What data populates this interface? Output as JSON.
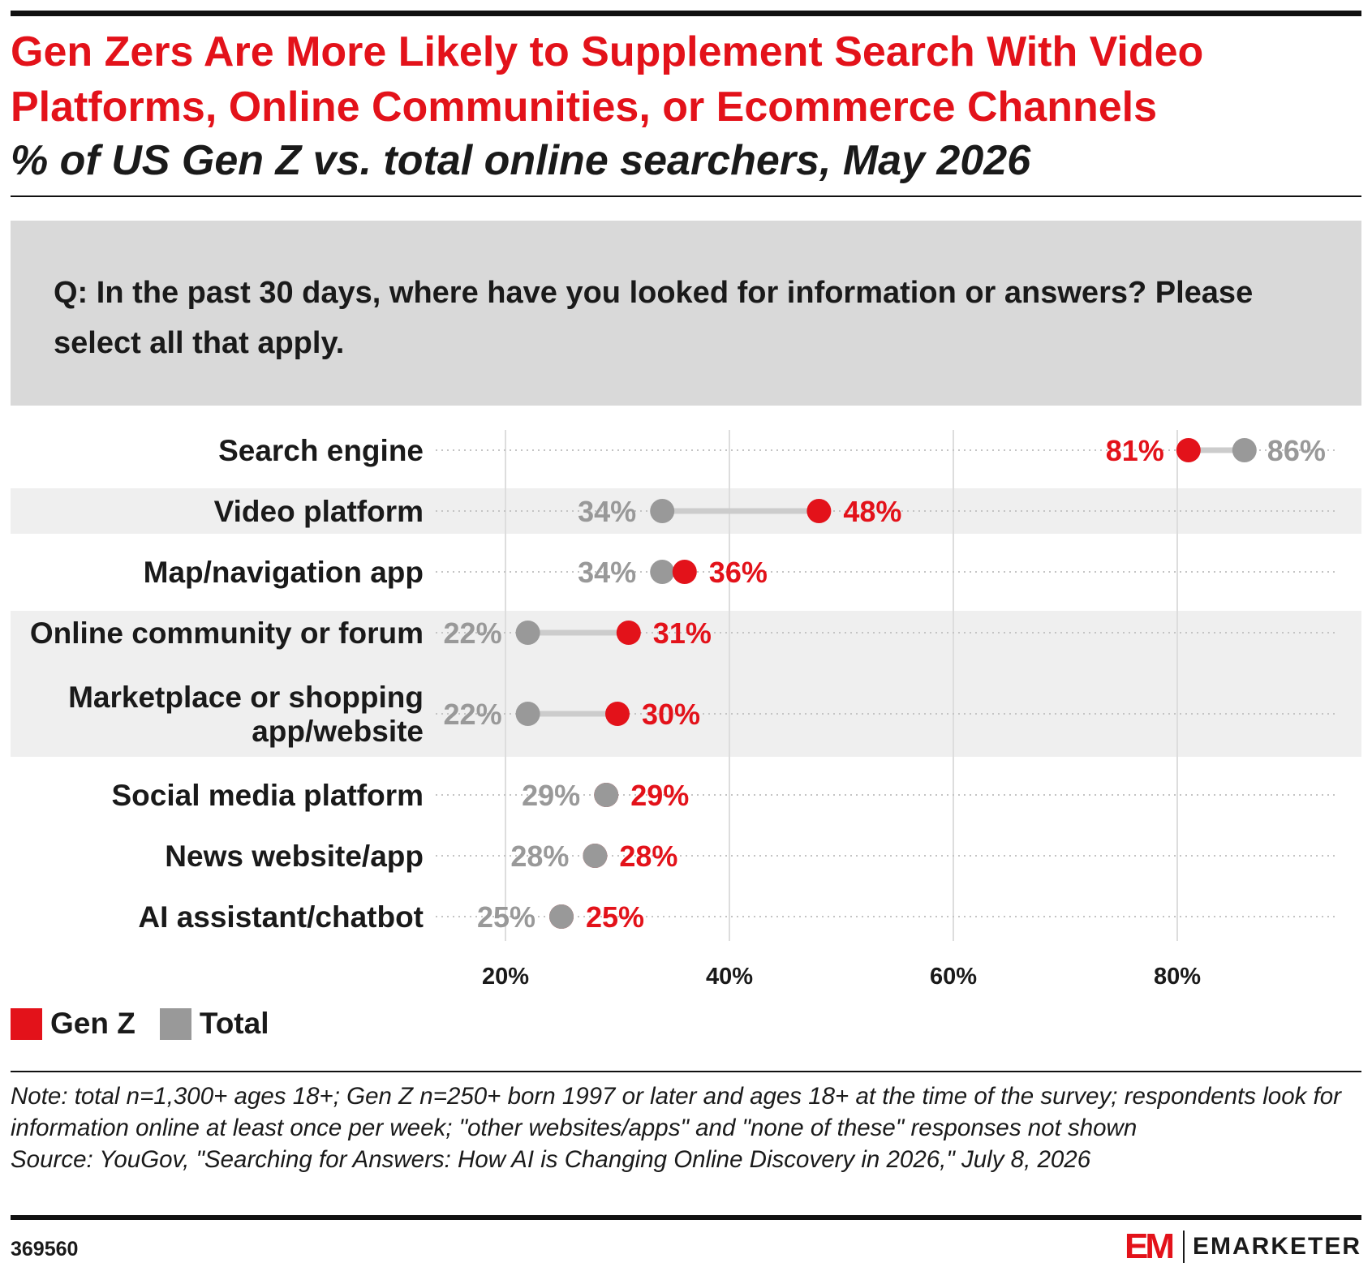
{
  "title": "Gen Zers Are More Likely to Supplement Search With Video Platforms, Online Communities, or Ecommerce Channels",
  "subtitle": "% of US Gen Z vs. total online searchers, May 2026",
  "question": "Q: In the past 30 days, where have you looked for information or answers? Please select all that apply.",
  "colors": {
    "gen_z": "#e3121a",
    "total": "#999999",
    "connector": "#cccccc",
    "band": "#efefef",
    "title": "#e3121a"
  },
  "chart_data": {
    "type": "dot-plot",
    "categories": [
      [
        "Search engine"
      ],
      [
        "Video platform"
      ],
      [
        "Map/navigation app"
      ],
      [
        "Online community or forum"
      ],
      [
        "Marketplace or shopping",
        "app/website"
      ],
      [
        "Social media platform"
      ],
      [
        "News website/app"
      ],
      [
        "AI assistant/chatbot"
      ]
    ],
    "series": [
      {
        "name": "Gen Z",
        "color": "#e3121a",
        "values": [
          81,
          48,
          36,
          31,
          30,
          29,
          28,
          25
        ]
      },
      {
        "name": "Total",
        "color": "#999999",
        "values": [
          86,
          34,
          34,
          22,
          22,
          29,
          28,
          25
        ]
      }
    ],
    "value_labels": {
      "Gen Z": [
        "81%",
        "48%",
        "36%",
        "31%",
        "30%",
        "29%",
        "28%",
        "25%"
      ],
      "Total": [
        "86%",
        "34%",
        "34%",
        "22%",
        "22%",
        "29%",
        "28%",
        "25%"
      ]
    },
    "x_ticks": [
      20,
      40,
      60,
      80
    ],
    "x_tick_labels": [
      "20%",
      "40%",
      "60%",
      "80%"
    ],
    "unit": "%",
    "grid": true,
    "legend_position": "bottom-left"
  },
  "legend": [
    {
      "label": "Gen Z",
      "color": "#e3121a"
    },
    {
      "label": "Total",
      "color": "#999999"
    }
  ],
  "footnote": {
    "note": "Note: total n=1,300+ ages 18+; Gen Z n=250+ born 1997 or later and ages 18+ at the time of the survey; respondents look for information online at least once per week; \"other websites/apps\" and \"none of these\" responses not shown",
    "source": "Source: YouGov, \"Searching for Answers: How AI is Changing Online Discovery in 2026,\" July 8, 2026"
  },
  "chart_id": "369560",
  "brand": {
    "mark": "EM",
    "name": "EMARKETER"
  }
}
